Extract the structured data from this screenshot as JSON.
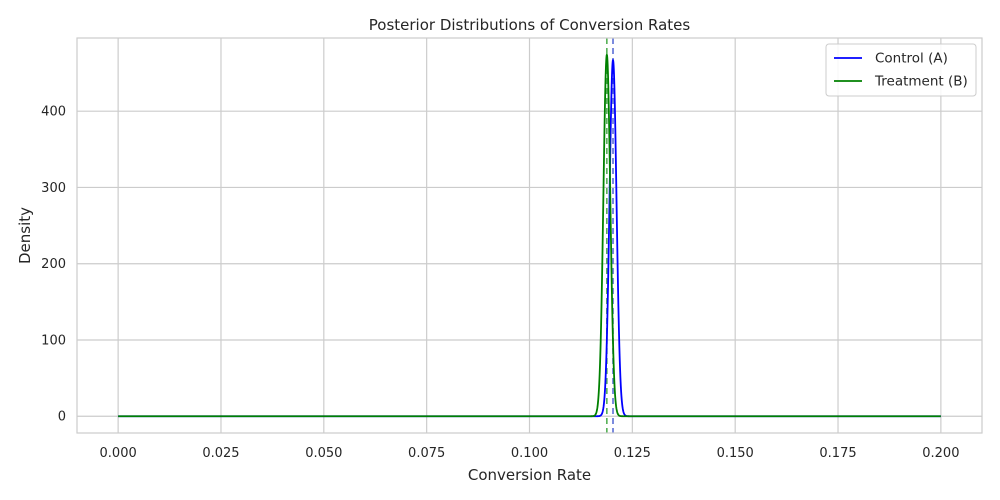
{
  "chart_data": {
    "type": "line",
    "title": "Posterior Distributions of Conversion Rates",
    "xlabel": "Conversion Rate",
    "ylabel": "Density",
    "xlim": [
      -0.01,
      0.21
    ],
    "ylim": [
      -22,
      496
    ],
    "xticks": [
      0.0,
      0.025,
      0.05,
      0.075,
      0.1,
      0.125,
      0.15,
      0.175,
      0.2
    ],
    "xtick_labels": [
      "0.000",
      "0.025",
      "0.050",
      "0.075",
      "0.100",
      "0.125",
      "0.150",
      "0.175",
      "0.200"
    ],
    "yticks": [
      0,
      100,
      200,
      300,
      400
    ],
    "ytick_labels": [
      "0",
      "100",
      "200",
      "300",
      "400"
    ],
    "grid": true,
    "legend_position": "top-right",
    "series": [
      {
        "name": "Control (A)",
        "color": "#0000ff",
        "distribution": "normal",
        "mean": 0.1203,
        "peak_density": 467,
        "mean_line_color": "#5b6fd6"
      },
      {
        "name": "Treatment (B)",
        "color": "#008000",
        "distribution": "normal",
        "mean": 0.1188,
        "peak_density": 474,
        "mean_line_color": "#55b055"
      }
    ],
    "x_range": [
      0.0,
      0.2
    ]
  }
}
